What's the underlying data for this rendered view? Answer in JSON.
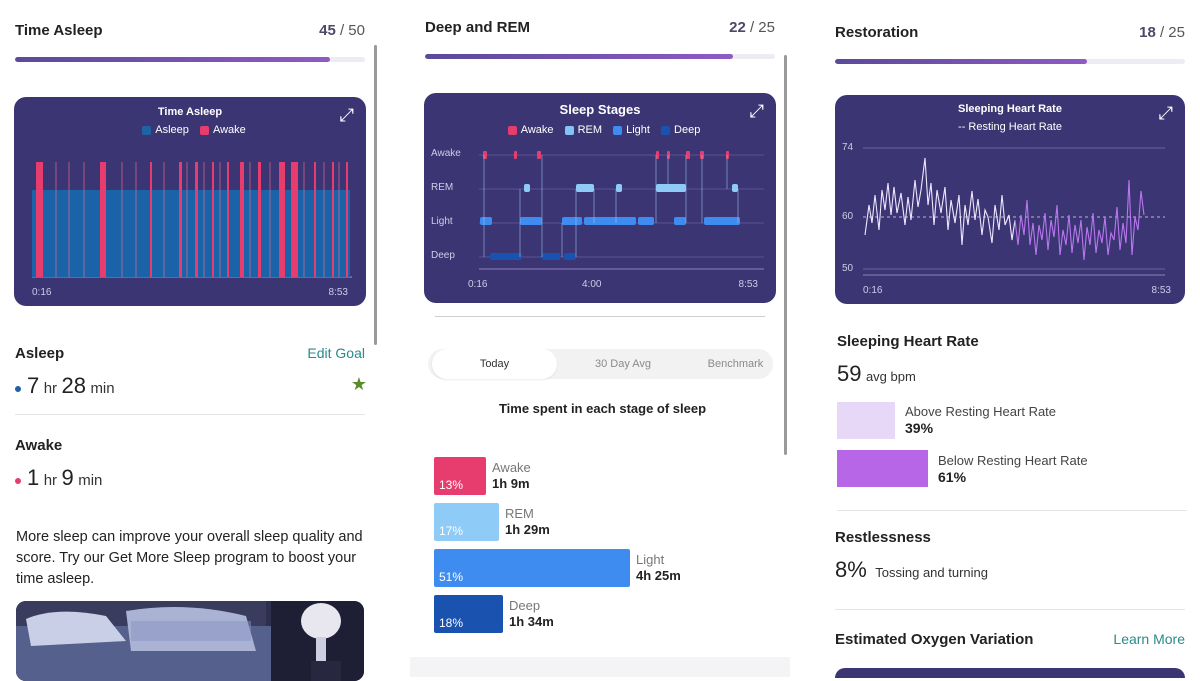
{
  "col1": {
    "header": {
      "title": "Time Asleep",
      "score": "45",
      "max": "/ 50",
      "progress": 0.9
    },
    "chart": {
      "title": "Time Asleep",
      "legend": [
        {
          "name": "Asleep",
          "color": "#1e63a6"
        },
        {
          "name": "Awake",
          "color": "#e73c6e"
        }
      ],
      "x_start": "0:16",
      "x_end": "8:53"
    },
    "asleep": {
      "label": "Asleep",
      "edit": "Edit Goal",
      "hr": "7",
      "hr_unit": "hr",
      "min": "28",
      "min_unit": "min",
      "dot_color": "#1e63a6"
    },
    "awake": {
      "label": "Awake",
      "hr": "1",
      "hr_unit": "hr",
      "min": "9",
      "min_unit": "min",
      "dot_color": "#e73c6e"
    },
    "promo": "More sleep can improve your overall sleep quality and score. Try our Get More Sleep program to boost your time asleep."
  },
  "col2": {
    "header": {
      "title": "Deep and REM",
      "score": "22",
      "max": "/ 25",
      "progress": 0.88
    },
    "chart": {
      "title": "Sleep Stages",
      "legend": [
        {
          "name": "Awake",
          "color": "#e73c6e"
        },
        {
          "name": "REM",
          "color": "#86c3f5"
        },
        {
          "name": "Light",
          "color": "#3f8cf0"
        },
        {
          "name": "Deep",
          "color": "#1a52b0"
        }
      ],
      "y_labels": [
        "Awake",
        "REM",
        "Light",
        "Deep"
      ],
      "x_labels": [
        "0:16",
        "4:00",
        "8:53"
      ]
    },
    "tabs": [
      "Today",
      "30 Day Avg",
      "Benchmark"
    ],
    "subtitle": "Time spent in each stage of sleep",
    "chart_data": {
      "type": "bar",
      "categories": [
        "Awake",
        "REM",
        "Light",
        "Deep"
      ],
      "values": [
        13,
        17,
        51,
        18
      ],
      "durations": [
        "1h 9m",
        "1h 29m",
        "4h 25m",
        "1h 34m"
      ],
      "colors": [
        "#e73c6e",
        "#8ecbf7",
        "#3f8cf0",
        "#1a52b0"
      ],
      "unit": "%"
    }
  },
  "col3": {
    "header": {
      "title": "Restoration",
      "score": "18",
      "max": "/ 25",
      "progress": 0.72
    },
    "chart": {
      "title": "Sleeping Heart Rate",
      "subtitle": "-- Resting Heart Rate",
      "y_labels": [
        "74",
        "60",
        "50"
      ],
      "x_start": "0:16",
      "x_end": "8:53"
    },
    "shr": {
      "label": "Sleeping Heart Rate",
      "value": "59",
      "unit": "avg bpm"
    },
    "above": {
      "label": "Above Resting Heart Rate",
      "pct": "39%",
      "color": "#e8d8f8"
    },
    "below": {
      "label": "Below Resting Heart Rate",
      "pct": "61%",
      "color": "#b866e8"
    },
    "restless": {
      "label": "Restlessness",
      "value": "8%",
      "desc": "Tossing and turning"
    },
    "oxygen": {
      "label": "Estimated Oxygen Variation",
      "link": "Learn More"
    }
  }
}
